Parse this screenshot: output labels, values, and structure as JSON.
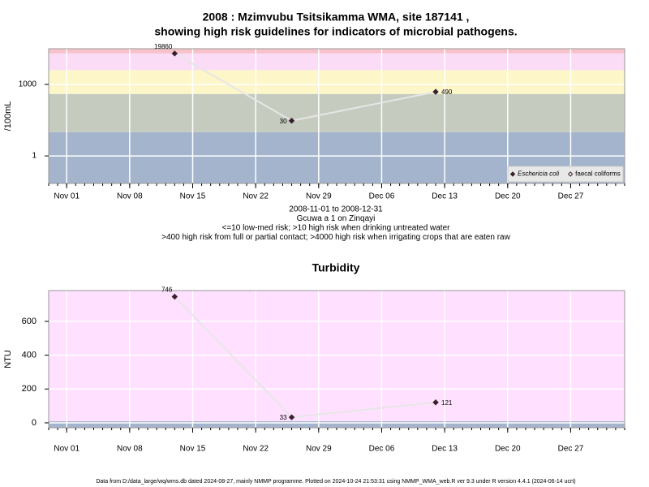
{
  "chart_data": [
    {
      "type": "line",
      "title": [
        "2008 : Mzimvubu Tsitsikamma WMA, site 187141 ,",
        "showing high risk guidelines for indicators of microbial pathogens."
      ],
      "notes": [
        "2008-11-01 to 2008-12-31",
        "Gcuwa a 1 on Zinqayi",
        "<=10 low-med risk; >10 high risk when drinking untreated water",
        ">400 high risk from full or partial contact; >4000 high risk when irrigating crops that are eaten raw"
      ],
      "y_label": "/100mL",
      "log_scale": true,
      "x": [
        "2008-11-13",
        "2008-11-26",
        "2008-12-12"
      ],
      "series": [
        {
          "name": "Eschericia coli",
          "color": "#3a1f2c",
          "line_color": "#e6e6e6",
          "marker": "filled",
          "values": [
            19860,
            30,
            490
          ]
        },
        {
          "name": "faecal coliforms",
          "color": "#3a1f2c",
          "line_color": "#e6e6e6",
          "marker": "open",
          "values": [
            null,
            null,
            null
          ]
        }
      ],
      "bands": [
        {
          "from": 0.07,
          "to": 10,
          "color": "#a3b4cc"
        },
        {
          "from": 10,
          "to": 400,
          "color": "#c5ccbf"
        },
        {
          "from": 400,
          "to": 4000,
          "color": "#fdf6c8"
        },
        {
          "from": 4000,
          "to": 20000,
          "color": "#fbdcf7"
        },
        {
          "from": 20000,
          "to": 31600,
          "color": "#f7c2ca"
        }
      ],
      "xlim": [
        "2008-10-30",
        "2009-01-02"
      ],
      "xticks": [
        {
          "value": "2008-11-01",
          "label": "Nov 01"
        },
        {
          "value": "2008-11-08",
          "label": "Nov 08"
        },
        {
          "value": "2008-11-15",
          "label": "Nov 15"
        },
        {
          "value": "2008-11-22",
          "label": "Nov 22"
        },
        {
          "value": "2008-11-29",
          "label": "Nov 29"
        },
        {
          "value": "2008-12-06",
          "label": "Dec 06"
        },
        {
          "value": "2008-12-13",
          "label": "Dec 13"
        },
        {
          "value": "2008-12-20",
          "label": "Dec 20"
        },
        {
          "value": "2008-12-27",
          "label": "Dec 27"
        }
      ],
      "ylim": [
        0.07,
        31600
      ],
      "yticks": [
        1,
        1000
      ],
      "grid": true,
      "legend": "bottom-right"
    },
    {
      "type": "line",
      "title": [
        "Turbidity"
      ],
      "y_label": "NTU",
      "log_scale": false,
      "x": [
        "2008-11-13",
        "2008-11-26",
        "2008-12-12"
      ],
      "series": [
        {
          "name": "Turbidity",
          "color": "#3a1f2c",
          "line_color": "#e6e6e6",
          "marker": "filled",
          "values": [
            746,
            33,
            121
          ]
        }
      ],
      "bands": [
        {
          "from": -29,
          "to": 10,
          "color": "#a3b4cc"
        },
        {
          "from": 10,
          "to": 782,
          "color": "#ffe0ff"
        }
      ],
      "xlim": [
        "2008-10-30",
        "2009-01-02"
      ],
      "xticks": [
        {
          "value": "2008-11-01",
          "label": "Nov 01"
        },
        {
          "value": "2008-11-08",
          "label": "Nov 08"
        },
        {
          "value": "2008-11-15",
          "label": "Nov 15"
        },
        {
          "value": "2008-11-22",
          "label": "Nov 22"
        },
        {
          "value": "2008-11-29",
          "label": "Nov 29"
        },
        {
          "value": "2008-12-06",
          "label": "Dec 06"
        },
        {
          "value": "2008-12-13",
          "label": "Dec 13"
        },
        {
          "value": "2008-12-20",
          "label": "Dec 20"
        },
        {
          "value": "2008-12-27",
          "label": "Dec 27"
        }
      ],
      "ylim": [
        -29,
        782
      ],
      "yticks": [
        0,
        200,
        400,
        600
      ],
      "grid": true
    }
  ],
  "footer": "Data from D:/data_large/wq/wms.db dated 2024-08-27, mainly NMMP programme. Plotted on 2024-10-24 21:53:31 using NMMP_WMA_web.R ver 9.3 under R version 4.4.1 (2024-06-14 ucrt)"
}
